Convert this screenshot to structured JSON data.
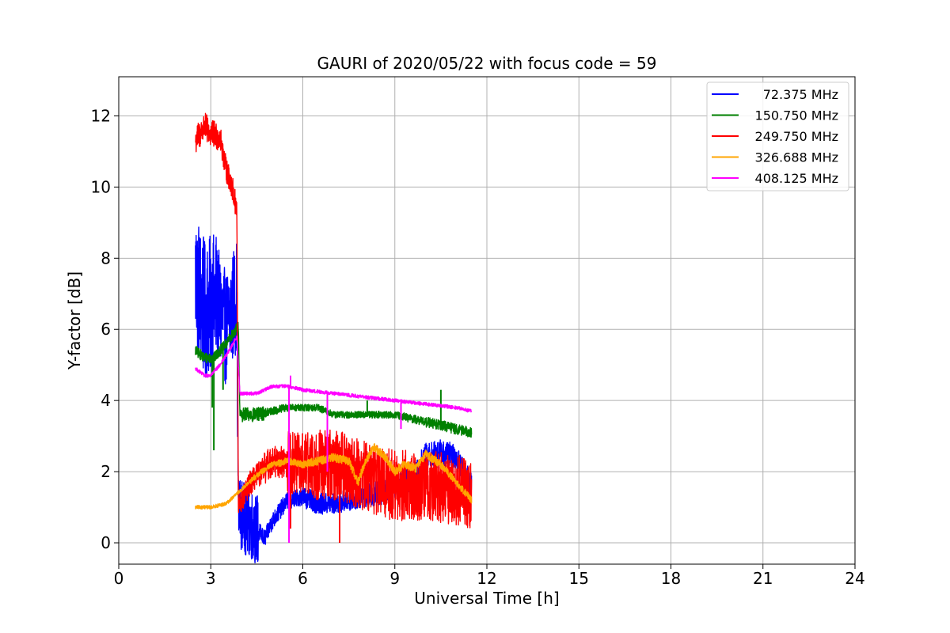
{
  "chart_data": {
    "type": "line",
    "title": "GAURI of 2020/05/22 with focus code = 59",
    "xlabel": "Universal Time [h]",
    "ylabel": "Y-factor [dB]",
    "xlim": [
      0,
      24
    ],
    "ylim": [
      -0.6,
      13.1
    ],
    "xticks": [
      0,
      3,
      6,
      9,
      12,
      15,
      18,
      21,
      24
    ],
    "xtick_labels": [
      "0",
      "3",
      "6",
      "9",
      "12",
      "15",
      "18",
      "21",
      "24"
    ],
    "yticks": [
      0,
      2,
      4,
      6,
      8,
      10,
      12
    ],
    "ytick_labels": [
      "0",
      "2",
      "4",
      "6",
      "8",
      "10",
      "12"
    ],
    "grid": true,
    "legend_position": "top-right",
    "series": [
      {
        "name": "72.375 MHz",
        "color": "#0000ff",
        "noise": [
          2.0,
          1.6,
          1.0,
          0.25,
          0.25,
          0.3,
          0.3,
          0.3,
          0.35,
          0.35,
          0.4,
          0.4,
          0.35
        ],
        "x": [
          2.5,
          2.8,
          3.2,
          3.5,
          3.85,
          3.9,
          4.2,
          4.6,
          4.75,
          5.0,
          5.5,
          6.0,
          6.5,
          7.0,
          7.5,
          8.0,
          8.5,
          9.0,
          9.5,
          10.0,
          10.5,
          11.0,
          11.5
        ],
        "y": [
          7.5,
          6.5,
          6.8,
          6.0,
          7.0,
          0.9,
          0.6,
          0.3,
          0.1,
          0.6,
          1.2,
          1.3,
          1.1,
          1.1,
          1.2,
          1.3,
          1.4,
          1.6,
          1.8,
          2.4,
          2.5,
          2.4,
          1.6
        ]
      },
      {
        "name": "150.750 MHz",
        "color": "#008000",
        "noise": [
          0.15,
          0.15,
          0.2,
          0.12,
          0.1,
          0.1,
          0.1,
          0.1,
          0.1,
          0.12,
          0.15,
          0.15
        ],
        "x": [
          2.5,
          2.8,
          3.1,
          3.5,
          3.9,
          3.95,
          4.5,
          5.0,
          5.5,
          6.0,
          6.5,
          7.0,
          7.5,
          8.0,
          8.5,
          9.0,
          9.5,
          10.0,
          10.5,
          11.0,
          11.5
        ],
        "y": [
          5.4,
          5.2,
          5.2,
          5.6,
          6.1,
          3.6,
          3.6,
          3.7,
          3.8,
          3.8,
          3.8,
          3.6,
          3.6,
          3.6,
          3.6,
          3.6,
          3.5,
          3.4,
          3.3,
          3.2,
          3.1
        ],
        "spikes": [
          [
            3.05,
            3.8
          ],
          [
            3.1,
            2.6
          ],
          [
            3.4,
            4.3
          ],
          [
            10.5,
            4.3
          ],
          [
            8.1,
            4.0
          ]
        ]
      },
      {
        "name": "249.750 MHz",
        "color": "#ff0000",
        "noise": [
          0.4,
          0.35,
          0.35,
          0.45,
          0.9,
          1.0,
          1.0,
          1.0,
          1.0,
          1.0,
          1.0,
          1.0
        ],
        "x": [
          2.5,
          2.8,
          3.0,
          3.3,
          3.5,
          3.7,
          3.85,
          3.9,
          4.3,
          5.0,
          6.0,
          7.0,
          8.0,
          9.0,
          10.0,
          11.0,
          11.5
        ],
        "y": [
          11.3,
          11.7,
          11.5,
          11.4,
          10.5,
          10.0,
          9.3,
          1.0,
          1.7,
          2.3,
          2.2,
          2.2,
          1.9,
          1.6,
          1.6,
          1.5,
          1.4
        ],
        "spikes": [
          [
            7.2,
            0.0
          ],
          [
            5.6,
            0.4
          ]
        ]
      },
      {
        "name": "326.688 MHz",
        "color": "#ffa500",
        "noise": [
          0.05,
          0.05,
          0.08,
          0.1,
          0.12,
          0.12,
          0.12,
          0.12,
          0.12,
          0.1
        ],
        "x": [
          2.5,
          3.0,
          3.5,
          4.0,
          4.5,
          5.0,
          5.5,
          6.0,
          6.5,
          7.0,
          7.5,
          7.8,
          8.0,
          8.3,
          8.7,
          9.0,
          9.3,
          9.7,
          10.0,
          10.5,
          11.0,
          11.5
        ],
        "y": [
          1.0,
          1.0,
          1.1,
          1.5,
          1.9,
          2.2,
          2.3,
          2.2,
          2.3,
          2.4,
          2.3,
          1.7,
          2.2,
          2.7,
          2.4,
          2.0,
          2.2,
          2.1,
          2.5,
          2.2,
          1.7,
          1.2
        ]
      },
      {
        "name": "408.125 MHz",
        "color": "#ff00ff",
        "noise": [
          0.05,
          0.05,
          0.05,
          0.05,
          0.05,
          0.05,
          0.05,
          0.05,
          0.05,
          0.05
        ],
        "x": [
          2.5,
          2.8,
          3.0,
          3.3,
          3.6,
          3.85,
          3.95,
          4.5,
          5.0,
          5.5,
          6.0,
          7.0,
          8.0,
          9.0,
          10.0,
          11.0,
          11.5
        ],
        "y": [
          4.9,
          4.7,
          4.7,
          5.0,
          5.4,
          5.8,
          4.2,
          4.2,
          4.4,
          4.4,
          4.3,
          4.2,
          4.1,
          4.0,
          3.9,
          3.8,
          3.7
        ],
        "spikes": [
          [
            5.55,
            0.0
          ],
          [
            5.6,
            4.7
          ],
          [
            6.8,
            2.0
          ],
          [
            9.2,
            3.2
          ]
        ]
      }
    ]
  }
}
